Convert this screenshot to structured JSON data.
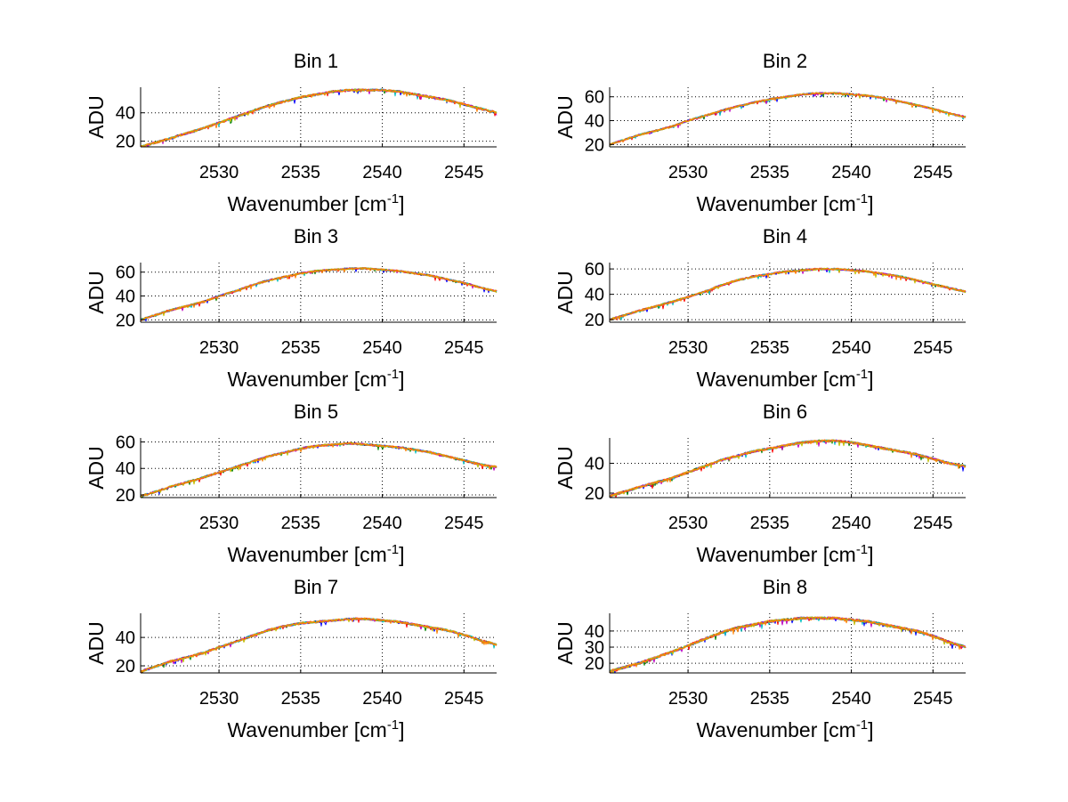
{
  "colors": {
    "background": "#ffffff",
    "axes": "#000000",
    "series_overlay": [
      "#0000ff",
      "#008000",
      "#ff0000",
      "#00bfbf",
      "#bf00bf",
      "#bfbf00",
      "#ff8000"
    ]
  },
  "chart_data": [
    {
      "type": "line",
      "title": "Bin 1",
      "xlabel": "Wavenumber [cm",
      "xlabel_sup": "-1",
      "xlabel_suffix": "]",
      "ylabel": "ADU",
      "xlim": [
        2525.2,
        2547
      ],
      "ylim": [
        16,
        58
      ],
      "xticks": [
        2530,
        2535,
        2540,
        2545
      ],
      "yticks": [
        20,
        40
      ],
      "grid": true,
      "x": [
        2525.2,
        2527,
        2529,
        2530,
        2531,
        2532,
        2533,
        2534,
        2535,
        2536,
        2537,
        2538,
        2539,
        2540,
        2541,
        2542,
        2543,
        2544,
        2545,
        2546,
        2547
      ],
      "y": [
        16,
        22,
        29,
        33,
        37,
        41,
        45,
        48,
        51,
        53,
        55,
        56,
        56,
        56,
        55,
        53,
        51,
        49,
        46,
        43,
        40
      ]
    },
    {
      "type": "line",
      "title": "Bin 2",
      "xlabel": "Wavenumber [cm",
      "xlabel_sup": "-1",
      "xlabel_suffix": "]",
      "ylabel": "ADU",
      "xlim": [
        2525.2,
        2547
      ],
      "ylim": [
        18,
        68
      ],
      "xticks": [
        2530,
        2535,
        2540,
        2545
      ],
      "yticks": [
        20,
        40,
        60
      ],
      "grid": true,
      "x": [
        2525.2,
        2527,
        2529,
        2530,
        2531,
        2532,
        2533,
        2534,
        2535,
        2536,
        2537,
        2538,
        2539,
        2540,
        2541,
        2542,
        2543,
        2544,
        2545,
        2546,
        2547
      ],
      "y": [
        20,
        28,
        35,
        40,
        44,
        48,
        52,
        55,
        58,
        60,
        62,
        63,
        63,
        62,
        61,
        59,
        56,
        53,
        50,
        46,
        43
      ]
    },
    {
      "type": "line",
      "title": "Bin 3",
      "xlabel": "Wavenumber [cm",
      "xlabel_sup": "-1",
      "xlabel_suffix": "]",
      "ylabel": "ADU",
      "xlim": [
        2525.2,
        2547
      ],
      "ylim": [
        18,
        68
      ],
      "xticks": [
        2530,
        2535,
        2540,
        2545
      ],
      "yticks": [
        20,
        40,
        60
      ],
      "grid": true,
      "x": [
        2525.2,
        2527,
        2529,
        2530,
        2531,
        2532,
        2533,
        2534,
        2535,
        2536,
        2537,
        2538,
        2539,
        2540,
        2541,
        2542,
        2543,
        2544,
        2545,
        2546,
        2547
      ],
      "y": [
        20,
        28,
        35,
        40,
        44,
        49,
        53,
        56,
        59,
        61,
        62,
        63,
        63,
        62,
        61,
        59,
        57,
        54,
        51,
        47,
        44
      ]
    },
    {
      "type": "line",
      "title": "Bin 4",
      "xlabel": "Wavenumber [cm",
      "xlabel_sup": "-1",
      "xlabel_suffix": "]",
      "ylabel": "ADU",
      "xlim": [
        2525.2,
        2547
      ],
      "ylim": [
        18,
        65
      ],
      "xticks": [
        2530,
        2535,
        2540,
        2545
      ],
      "yticks": [
        20,
        40,
        60
      ],
      "grid": true,
      "x": [
        2525.2,
        2527,
        2529,
        2530,
        2531,
        2532,
        2533,
        2534,
        2535,
        2536,
        2537,
        2538,
        2539,
        2540,
        2541,
        2542,
        2543,
        2544,
        2545,
        2546,
        2547
      ],
      "y": [
        20,
        27,
        34,
        38,
        42,
        47,
        51,
        54,
        56,
        58,
        59,
        60,
        60,
        59,
        58,
        56,
        54,
        51,
        48,
        45,
        42
      ]
    },
    {
      "type": "line",
      "title": "Bin 5",
      "xlabel": "Wavenumber [cm",
      "xlabel_sup": "-1",
      "xlabel_suffix": "]",
      "ylabel": "ADU",
      "xlim": [
        2525.2,
        2547
      ],
      "ylim": [
        18,
        63
      ],
      "xticks": [
        2530,
        2535,
        2540,
        2545
      ],
      "yticks": [
        20,
        40,
        60
      ],
      "grid": true,
      "x": [
        2525.2,
        2527,
        2529,
        2530,
        2531,
        2532,
        2533,
        2534,
        2535,
        2536,
        2537,
        2538,
        2539,
        2540,
        2541,
        2542,
        2543,
        2544,
        2545,
        2546,
        2547
      ],
      "y": [
        19,
        26,
        33,
        37,
        41,
        45,
        49,
        52,
        55,
        57,
        58,
        59,
        58,
        57,
        56,
        54,
        52,
        49,
        46,
        43,
        41
      ]
    },
    {
      "type": "line",
      "title": "Bin 6",
      "xlabel": "Wavenumber [cm",
      "xlabel_sup": "-1",
      "xlabel_suffix": "]",
      "ylabel": "ADU",
      "xlim": [
        2525.2,
        2547
      ],
      "ylim": [
        17,
        57
      ],
      "xticks": [
        2530,
        2535,
        2540,
        2545
      ],
      "yticks": [
        20,
        40
      ],
      "grid": true,
      "x": [
        2525.2,
        2527,
        2529,
        2530,
        2531,
        2532,
        2533,
        2534,
        2535,
        2536,
        2537,
        2538,
        2539,
        2540,
        2541,
        2542,
        2543,
        2544,
        2545,
        2546,
        2547
      ],
      "y": [
        18,
        24,
        30,
        34,
        38,
        42,
        45,
        48,
        50,
        52,
        54,
        55,
        55,
        54,
        52,
        50,
        48,
        46,
        43,
        40,
        38
      ]
    },
    {
      "type": "line",
      "title": "Bin 7",
      "xlabel": "Wavenumber [cm",
      "xlabel_sup": "-1",
      "xlabel_suffix": "]",
      "ylabel": "ADU",
      "xlim": [
        2525.2,
        2547
      ],
      "ylim": [
        15,
        57
      ],
      "xticks": [
        2530,
        2535,
        2540,
        2545
      ],
      "yticks": [
        20,
        40
      ],
      "grid": true,
      "x": [
        2525.2,
        2527,
        2529,
        2530,
        2531,
        2532,
        2533,
        2534,
        2535,
        2536,
        2537,
        2538,
        2539,
        2540,
        2541,
        2542,
        2543,
        2544,
        2545,
        2546,
        2547
      ],
      "y": [
        16,
        23,
        29,
        33,
        37,
        41,
        45,
        48,
        50,
        51,
        52,
        53,
        53,
        52,
        51,
        49,
        47,
        45,
        42,
        38,
        35
      ]
    },
    {
      "type": "line",
      "title": "Bin 8",
      "xlabel": "Wavenumber [cm",
      "xlabel_sup": "-1",
      "xlabel_suffix": "]",
      "ylabel": "ADU",
      "xlim": [
        2525.2,
        2547
      ],
      "ylim": [
        14,
        51
      ],
      "xticks": [
        2530,
        2535,
        2540,
        2545
      ],
      "yticks": [
        20,
        30,
        40
      ],
      "grid": true,
      "x": [
        2525.2,
        2527,
        2529,
        2530,
        2531,
        2532,
        2533,
        2534,
        2535,
        2536,
        2537,
        2538,
        2539,
        2540,
        2541,
        2542,
        2543,
        2544,
        2545,
        2546,
        2547
      ],
      "y": [
        15,
        20,
        27,
        31,
        35,
        39,
        42,
        44,
        46,
        47,
        48,
        48,
        48,
        47,
        46,
        44,
        42,
        40,
        37,
        33,
        30
      ]
    }
  ]
}
